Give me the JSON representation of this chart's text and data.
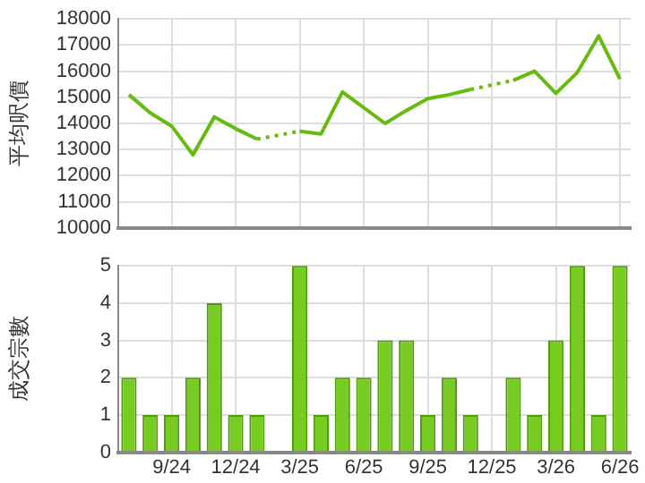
{
  "chart_data": [
    {
      "type": "line",
      "ylabel": "平均呎價",
      "categories": [
        null,
        null,
        null,
        null,
        null,
        null,
        null,
        null,
        null,
        null,
        null,
        null,
        null,
        null,
        null,
        null,
        null,
        null,
        null,
        null,
        null,
        null,
        null,
        null
      ],
      "values": [
        15100,
        14400,
        13900,
        12800,
        14250,
        13800,
        13400,
        null,
        13700,
        13600,
        15200,
        14600,
        14000,
        14500,
        14950,
        15100,
        15300,
        null,
        15650,
        16000,
        15150,
        15950,
        17350,
        15700
      ],
      "color": "#66bb11",
      "ylim": [
        10000,
        18000
      ],
      "yticks": [
        10000,
        11000,
        12000,
        13000,
        14000,
        15000,
        16000,
        17000,
        18000
      ],
      "grid": true,
      "tick_labels": "y",
      "marker": "none",
      "line_style": "solid"
    },
    {
      "type": "bar",
      "ylabel": "成交宗數",
      "categories": [
        null,
        null,
        "9/24",
        null,
        null,
        "12/24",
        null,
        null,
        "3/25",
        null,
        null,
        "6/25",
        null,
        null,
        "9/25",
        null,
        null,
        "12/25",
        null,
        null,
        "3/26",
        null,
        null,
        "6/26"
      ],
      "values": [
        2,
        1,
        1,
        2,
        4,
        1,
        1,
        0,
        5,
        1,
        2,
        2,
        3,
        3,
        1,
        2,
        1,
        0,
        2,
        1,
        3,
        5,
        1,
        5
      ],
      "color": "#77cc22",
      "ylim": [
        0,
        5
      ],
      "yticks": [
        0,
        1,
        2,
        3,
        4,
        5
      ],
      "grid": true
    }
  ]
}
